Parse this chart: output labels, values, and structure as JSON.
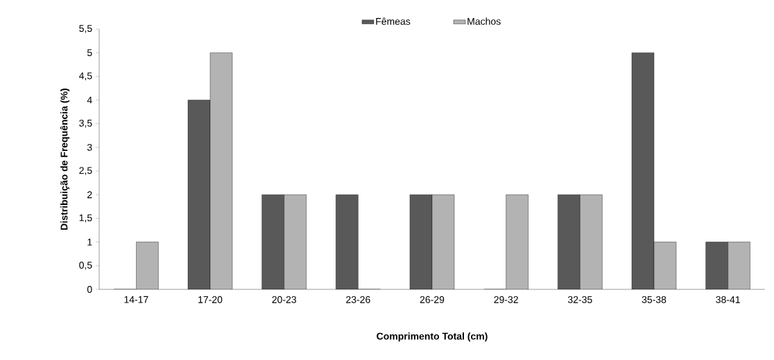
{
  "chart_data": {
    "type": "bar",
    "xlabel": "Comprimento Total (cm)",
    "ylabel": "Distribuição de Frequência (%)",
    "categories": [
      "14-17",
      "17-20",
      "20-23",
      "23-26",
      "26-29",
      "29-32",
      "32-35",
      "35-38",
      "38-41"
    ],
    "series": [
      {
        "name": "Fêmeas",
        "color": "#595959",
        "values": [
          0,
          4,
          2,
          2,
          2,
          0,
          2,
          5,
          1
        ]
      },
      {
        "name": "Machos",
        "color": "#b3b3b3",
        "values": [
          1,
          5,
          2,
          0,
          2,
          2,
          2,
          1,
          1
        ]
      }
    ],
    "ylim": [
      0,
      5.5
    ],
    "yticks": [
      0,
      {
        "value": 0.5,
        "label": "0,5"
      },
      1,
      {
        "value": 1.5,
        "label": "1,5"
      },
      2,
      {
        "value": 2.5,
        "label": "2,5"
      },
      3,
      {
        "value": 3.5,
        "label": "3,5"
      },
      4,
      {
        "value": 4.5,
        "label": "4,5"
      },
      5,
      {
        "value": 5.5,
        "label": "5,5"
      }
    ],
    "legend": "top"
  }
}
